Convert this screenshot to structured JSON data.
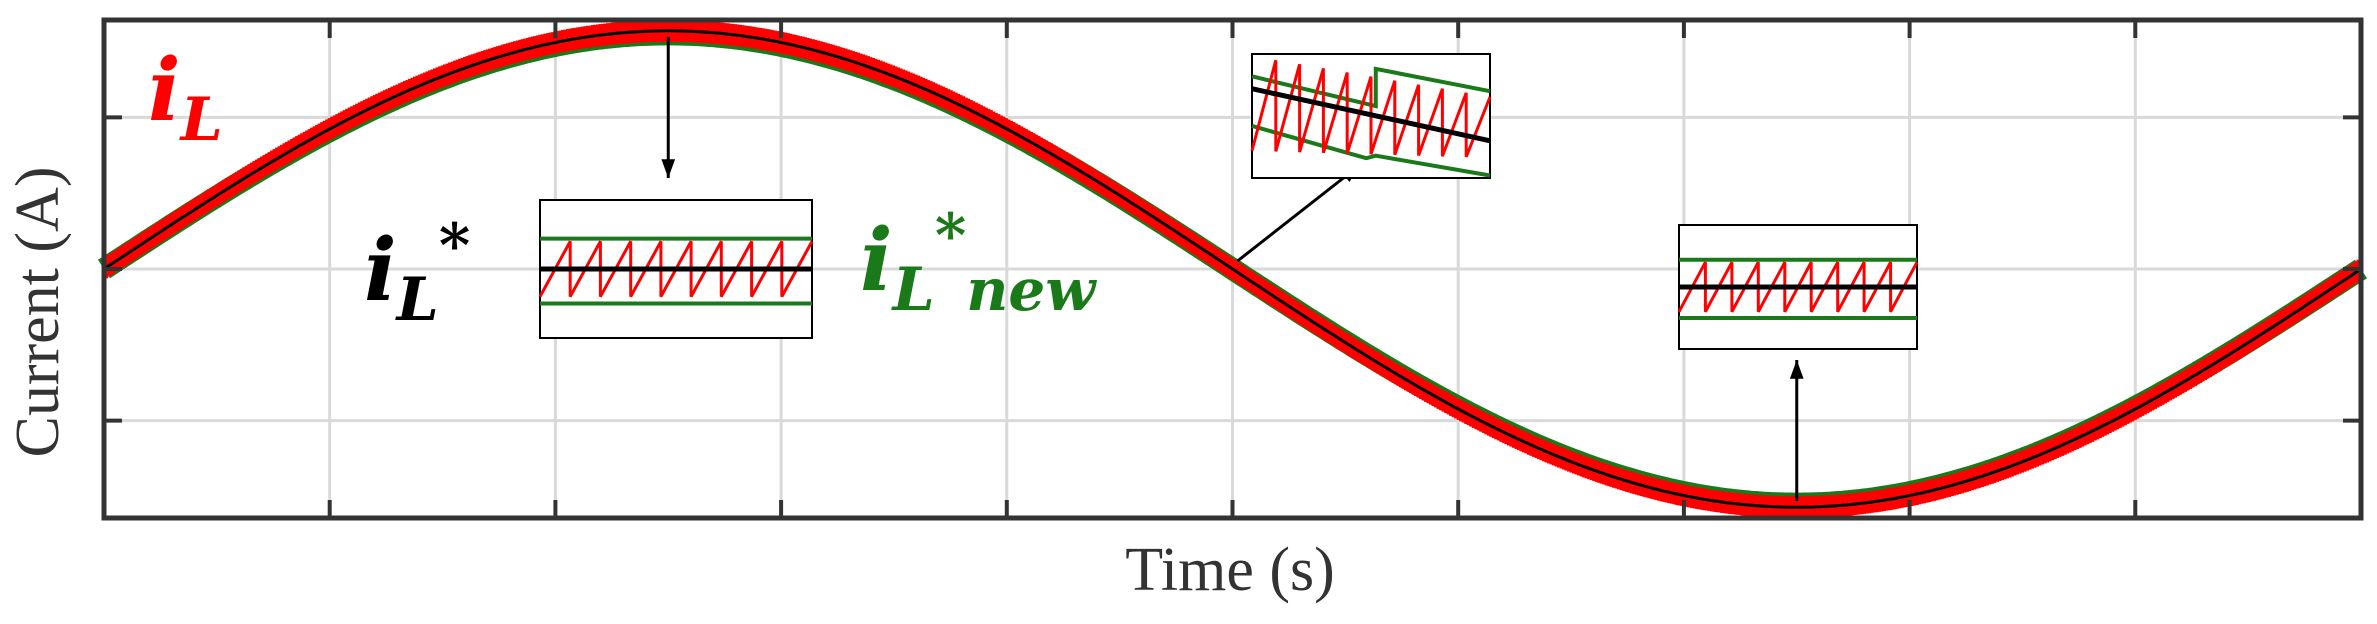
{
  "chart_data": {
    "type": "line",
    "title": "",
    "xlabel": "Time (s)",
    "ylabel": "Current (A)",
    "xlim": [
      0,
      1
    ],
    "ylim": [
      -1.15,
      1.15
    ],
    "grid": true,
    "tick_labels_shown": false,
    "x_gridlines": [
      0.1,
      0.2,
      0.3,
      0.4,
      0.5,
      0.6,
      0.7,
      0.8,
      0.9
    ],
    "y_gridlines": [
      -0.7,
      0,
      0.7
    ],
    "description_of_waveforms": "sinusoidal inductor current with switching ripple",
    "series": [
      {
        "name": "i_L",
        "color": "#ff0000",
        "shape": "sine",
        "amplitude": 1.1,
        "cycles": 1,
        "phase_deg": 0,
        "ripple": 0.05
      },
      {
        "name": "i_L*",
        "color": "#000000",
        "shape": "sine",
        "amplitude": 1.1,
        "cycles": 1,
        "phase_deg": 0
      },
      {
        "name": "i_L*new",
        "color": "#1a7a1a",
        "shape": "sine",
        "amplitude": 1.1,
        "cycles": 1,
        "phase_deg": 0
      }
    ],
    "legend": {
      "iL": {
        "base": "i",
        "sub": "L",
        "sup": "",
        "color": "#ff0000"
      },
      "iLstar": {
        "base": "i",
        "sub": "L",
        "sup": "*",
        "color": "#000000"
      },
      "iLnew": {
        "base": "i",
        "sub": "L",
        "sup": "*",
        "subnew": "new",
        "color": "#1a7a1a"
      }
    },
    "insets": [
      {
        "target_x": 0.25,
        "note": "peak region zoom"
      },
      {
        "target_x": 0.5,
        "note": "zero-crossing zoom showing reference step"
      },
      {
        "target_x": 0.75,
        "note": "trough region zoom"
      }
    ]
  },
  "colors": {
    "axis": "#333333",
    "grid": "#d9d9d9",
    "red": "#ff0000",
    "black": "#000000",
    "green": "#1a7a1a"
  }
}
